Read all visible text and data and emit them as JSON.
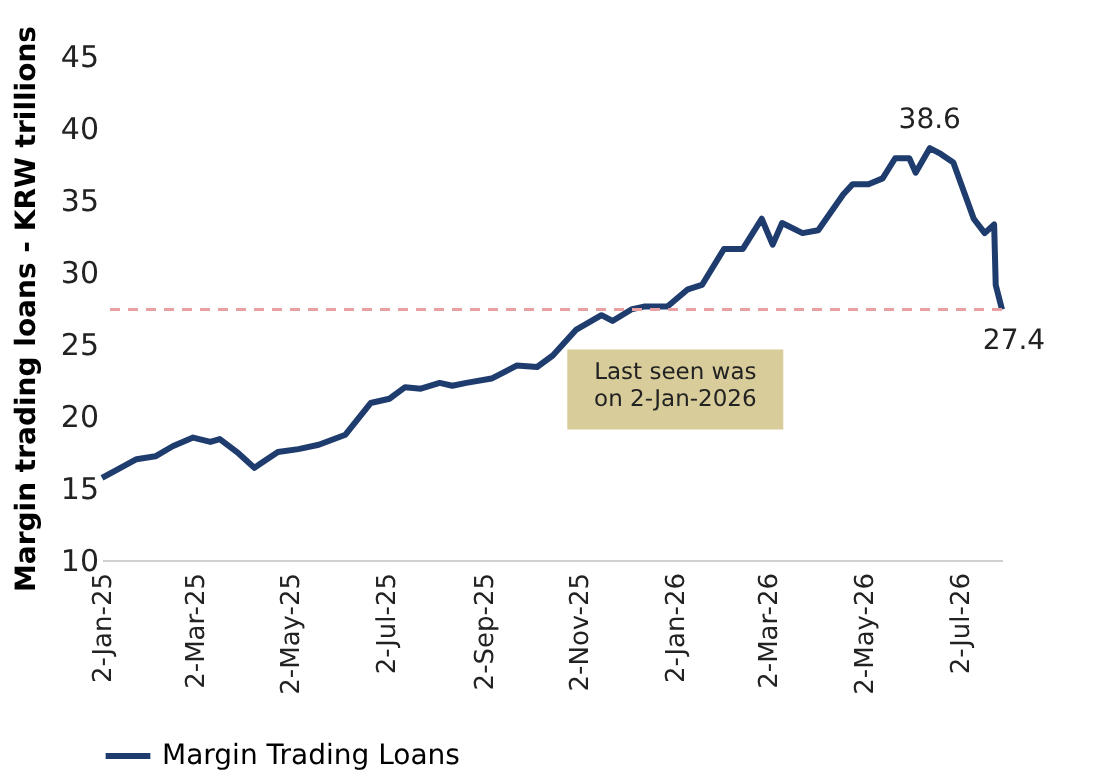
{
  "chart_data": {
    "type": "line",
    "ylabel": "Margin trading loans - KRW trillions",
    "x": [
      "2025-01-02",
      "2025-01-12",
      "2025-01-24",
      "2025-02-05",
      "2025-02-16",
      "2025-03-01",
      "2025-03-12",
      "2025-03-18",
      "2025-03-30",
      "2025-04-09",
      "2025-04-13",
      "2025-04-24",
      "2025-05-07",
      "2025-05-20",
      "2025-06-06",
      "2025-06-22",
      "2025-07-04",
      "2025-07-14",
      "2025-07-24",
      "2025-08-05",
      "2025-08-13",
      "2025-08-22",
      "2025-09-07",
      "2025-09-23",
      "2025-10-06",
      "2025-10-16",
      "2025-10-31",
      "2025-11-16",
      "2025-11-23",
      "2025-12-05",
      "2025-12-13",
      "2025-12-28",
      "2026-01-10",
      "2026-01-19",
      "2026-02-02",
      "2026-02-14",
      "2026-02-26",
      "2026-03-05",
      "2026-03-11",
      "2026-03-24",
      "2026-04-03",
      "2026-04-19",
      "2026-04-25",
      "2026-05-05",
      "2026-05-14",
      "2026-05-22",
      "2026-05-31",
      "2026-06-04",
      "2026-06-13",
      "2026-06-20",
      "2026-06-28",
      "2026-07-05",
      "2026-07-11",
      "2026-07-18",
      "2026-07-24",
      "2026-07-25",
      "2026-07-29"
    ],
    "series": [
      {
        "name": "Margin Trading Loans",
        "color": "#1f3c6e",
        "values": [
          15.7,
          16.3,
          17.0,
          17.2,
          17.9,
          18.5,
          18.2,
          18.4,
          17.4,
          16.4,
          16.7,
          17.5,
          17.7,
          18.0,
          18.7,
          20.9,
          21.2,
          22.0,
          21.9,
          22.3,
          22.1,
          22.3,
          22.6,
          23.5,
          23.4,
          24.2,
          26.0,
          27.0,
          26.6,
          27.4,
          27.6,
          27.6,
          28.8,
          29.1,
          31.6,
          31.6,
          33.7,
          31.9,
          33.4,
          32.7,
          32.9,
          35.4,
          36.1,
          36.1,
          36.5,
          37.9,
          37.9,
          36.9,
          38.6,
          38.2,
          37.6,
          35.5,
          33.7,
          32.7,
          33.3,
          29.1,
          27.4
        ]
      }
    ],
    "xlim": [
      "2025-01-02",
      "2026-07-29"
    ],
    "xticks": [
      {
        "value": "2025-01-02",
        "label": "2-Jan-25"
      },
      {
        "value": "2025-03-02",
        "label": "2-Mar-25"
      },
      {
        "value": "2025-05-02",
        "label": "2-May-25"
      },
      {
        "value": "2025-07-02",
        "label": "2-Jul-25"
      },
      {
        "value": "2025-09-02",
        "label": "2-Sep-25"
      },
      {
        "value": "2025-11-02",
        "label": "2-Nov-25"
      },
      {
        "value": "2026-01-02",
        "label": "2-Jan-26"
      },
      {
        "value": "2026-03-02",
        "label": "2-Mar-26"
      },
      {
        "value": "2026-05-02",
        "label": "2-May-26"
      },
      {
        "value": "2026-07-02",
        "label": "2-Jul-26"
      }
    ],
    "ylim": [
      10,
      45
    ],
    "yticks": [
      10,
      15,
      20,
      25,
      30,
      35,
      40,
      45
    ],
    "ref_lines": [
      {
        "axis": "y",
        "value": 27.4,
        "color": "#e8a0a0",
        "line_style": "dashed"
      }
    ],
    "annotations": [
      {
        "text": "38.6",
        "x": "2026-06-13",
        "y": 38.6
      },
      {
        "text": "27.4",
        "x": "2026-07-29",
        "y": 27.4
      },
      {
        "text": "Last seen was\non 2-Jan-2026",
        "x": "2026-01-02",
        "y": 27.4
      }
    ],
    "legend": "bottom",
    "grid": false,
    "marker": "none",
    "line_style": "solid"
  }
}
